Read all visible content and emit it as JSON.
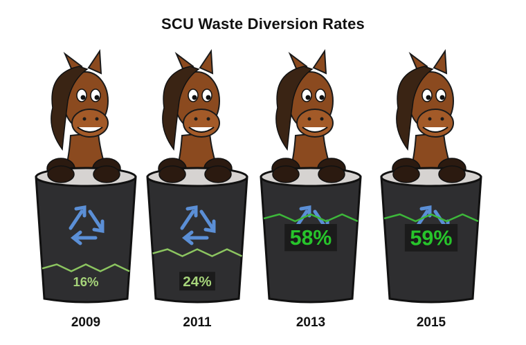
{
  "chart_data": {
    "type": "bar",
    "title": "SCU Waste Diversion Rates",
    "categories": [
      "2009",
      "2011",
      "2013",
      "2015"
    ],
    "values": [
      16,
      24,
      58,
      59
    ],
    "value_labels": [
      "16%",
      "24%",
      "58%",
      "59%"
    ],
    "unit": "%",
    "xlabel": "",
    "ylabel": "",
    "grid": false,
    "legend": "none"
  },
  "colors": {
    "bin": "#2e2e30",
    "bin_rim": "#d6d3d1",
    "recycle_arrows": "#5b8fd6",
    "fill_line_low": "#8cc560",
    "fill_line_high": "#3db83a",
    "label_low": "#a6d47a",
    "label_high": "#27c42b",
    "horse_body": "#8b4a1f",
    "horse_mane": "#3a2414"
  },
  "icons": [
    "horse-mascot-icon",
    "trash-bin-icon",
    "recycle-icon"
  ]
}
